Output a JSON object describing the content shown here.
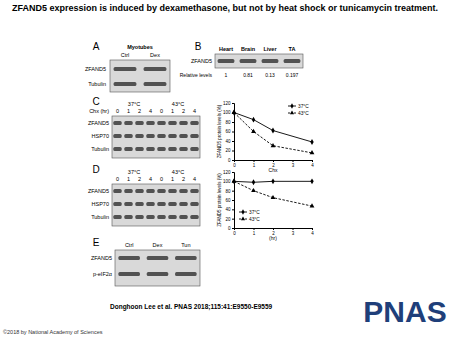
{
  "title": "ZFAND5 expression is induced by dexamethasone, but not by heat shock or tunicamycin treatment.",
  "panels": {
    "A": {
      "label": "A",
      "header": "Myotubes",
      "lanes": [
        "Ctrl",
        "Dex"
      ],
      "rows": [
        "ZFAND5",
        "Tubulin"
      ]
    },
    "B": {
      "label": "B",
      "lanes": [
        "Heart",
        "Brain",
        "Liver",
        "TA"
      ],
      "rows": [
        "ZFAND5"
      ],
      "relative_label": "Relative levels",
      "relative_levels": [
        1,
        0.81,
        0.13,
        0.197
      ]
    },
    "C": {
      "label": "C",
      "groups": [
        "37°C",
        "43°C"
      ],
      "lane_label": "Chx (hr)",
      "lanes": [
        "0",
        "1",
        "2",
        "4",
        "0",
        "1",
        "2",
        "4"
      ],
      "rows": [
        "ZFAND5",
        "HSP70",
        "Tubulin"
      ]
    },
    "D": {
      "label": "D",
      "groups": [
        "37°C",
        "43°C"
      ],
      "lanes": [
        "0",
        "1",
        "2",
        "4",
        "0",
        "1",
        "2",
        "4"
      ],
      "rows": [
        "ZFAND5",
        "HSP70",
        "Tubulin"
      ]
    },
    "E": {
      "label": "E",
      "lanes": [
        "Ctrl",
        "Dex",
        "Tun"
      ],
      "rows": [
        "ZFAND5",
        "p-eIF2α"
      ]
    }
  },
  "chart_data": [
    {
      "type": "line",
      "x_label": "Chx",
      "y_label": "ZFAND5 protein levels (%)",
      "x": [
        0,
        1,
        2,
        4
      ],
      "series": [
        {
          "name": "37°C",
          "color": "#000000",
          "marker": "diamond",
          "line_style": "solid",
          "values": [
            100,
            85,
            62,
            38
          ]
        },
        {
          "name": "43°C",
          "color": "#000000",
          "marker": "triangle",
          "line_style": "dashed",
          "values": [
            100,
            60,
            30,
            15
          ]
        }
      ],
      "xlim": [
        0,
        4
      ],
      "xticks": [
        0,
        1,
        2,
        3,
        4
      ],
      "ylim": [
        0,
        120
      ],
      "yticks": [
        0,
        20,
        40,
        60,
        80,
        100,
        120
      ],
      "legend": "upper right"
    },
    {
      "type": "line",
      "x_label": "(hr)",
      "y_label": "ZFAND5 protein levels (%)",
      "x": [
        0,
        1,
        2,
        4
      ],
      "series": [
        {
          "name": "37°C",
          "color": "#000000",
          "marker": "diamond",
          "line_style": "solid",
          "values": [
            100,
            98,
            100,
            100
          ]
        },
        {
          "name": "43°C",
          "color": "#000000",
          "marker": "triangle",
          "line_style": "dashed",
          "values": [
            100,
            80,
            65,
            47
          ]
        }
      ],
      "xlim": [
        0,
        4
      ],
      "xticks": [
        0,
        1,
        2,
        3,
        4
      ],
      "ylim": [
        0,
        120
      ],
      "yticks": [
        0,
        20,
        40,
        60,
        80,
        100,
        120
      ],
      "legend": "lower left"
    }
  ],
  "citation": "Donghoon Lee et al. PNAS 2018;115:41:E9550-E9559",
  "logo": "PNAS",
  "copyright": "©2018 by National Academy of Sciences"
}
